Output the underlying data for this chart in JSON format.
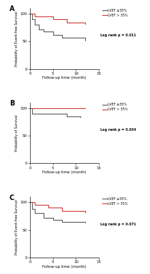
{
  "panels": [
    {
      "label": "A",
      "ylabel": "Probability of Event-free Survival",
      "pvalue": "Log rank p = 0.011",
      "curve_low": {
        "x": [
          0,
          0.5,
          1,
          2,
          3,
          5,
          7,
          12
        ],
        "y": [
          100,
          90,
          80,
          72,
          68,
          62,
          57,
          52
        ]
      },
      "curve_high": {
        "x": [
          0,
          1,
          5,
          8,
          12
        ],
        "y": [
          100,
          95,
          90,
          84,
          82
        ]
      }
    },
    {
      "label": "B",
      "ylabel": "Probability of Survival",
      "pvalue": "Log rank p = 0.034",
      "curve_low": {
        "x": [
          0,
          0.5,
          8,
          11
        ],
        "y": [
          100,
          90,
          85,
          83
        ]
      },
      "curve_high": {
        "x": [
          0,
          12
        ],
        "y": [
          100,
          100
        ]
      }
    },
    {
      "label": "C",
      "ylabel": "Probability of Event-free Survival",
      "pvalue": "Log rank p = 0.071",
      "curve_low": {
        "x": [
          0,
          0.5,
          1,
          3,
          5,
          7,
          12
        ],
        "y": [
          100,
          88,
          80,
          72,
          68,
          65,
          63
        ]
      },
      "curve_high": {
        "x": [
          0,
          1,
          4,
          7,
          12
        ],
        "y": [
          100,
          95,
          90,
          84,
          82
        ]
      }
    }
  ],
  "color_low": "#555555",
  "color_high": "#cc3333",
  "xlabel": "Follow-up time (month)",
  "xlim": [
    0,
    15
  ],
  "ylim": [
    0,
    110
  ],
  "yticks": [
    0,
    50,
    100
  ],
  "xticks": [
    0,
    5,
    10,
    15
  ],
  "legend_low": "LVEF ≤35%",
  "legend_high": "LVEF > 35%"
}
